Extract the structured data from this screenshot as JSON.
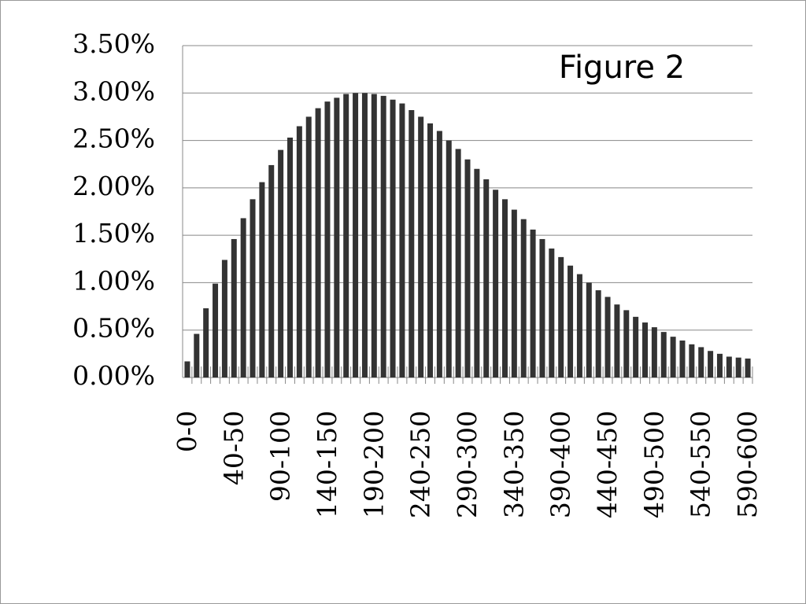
{
  "chart_data": {
    "type": "bar",
    "annotation": "Figure 2",
    "categories": [
      "0-0",
      null,
      null,
      null,
      null,
      "40-50",
      null,
      null,
      null,
      null,
      "90-100",
      null,
      null,
      null,
      null,
      "140-150",
      null,
      null,
      null,
      null,
      "190-200",
      null,
      null,
      null,
      null,
      "240-250",
      null,
      null,
      null,
      null,
      "290-300",
      null,
      null,
      null,
      null,
      "340-350",
      null,
      null,
      null,
      null,
      "390-400",
      null,
      null,
      null,
      null,
      "440-450",
      null,
      null,
      null,
      null,
      "490-500",
      null,
      null,
      null,
      null,
      "540-550",
      null,
      null,
      null,
      null,
      "590-600"
    ],
    "values": [
      0.17,
      0.46,
      0.73,
      0.99,
      1.24,
      1.46,
      1.68,
      1.88,
      2.06,
      2.24,
      2.4,
      2.53,
      2.65,
      2.75,
      2.84,
      2.91,
      2.95,
      2.99,
      3.0,
      3.0,
      2.99,
      2.97,
      2.93,
      2.89,
      2.82,
      2.75,
      2.68,
      2.6,
      2.5,
      2.41,
      2.3,
      2.2,
      2.09,
      1.98,
      1.88,
      1.77,
      1.67,
      1.56,
      1.46,
      1.36,
      1.27,
      1.18,
      1.09,
      1.0,
      0.92,
      0.85,
      0.77,
      0.71,
      0.64,
      0.58,
      0.53,
      0.48,
      0.43,
      0.39,
      0.35,
      0.32,
      0.28,
      0.25,
      0.22,
      0.21,
      0.2
    ],
    "color": "#333333",
    "ylim": [
      0,
      3.5
    ],
    "yticks": [
      {
        "value": 0,
        "label": "0.00%"
      },
      {
        "value": 0.5,
        "label": "0.50%"
      },
      {
        "value": 1,
        "label": "1.00%"
      },
      {
        "value": 1.5,
        "label": "1.50%"
      },
      {
        "value": 2,
        "label": "2.00%"
      },
      {
        "value": 2.5,
        "label": "2.50%"
      },
      {
        "value": 3,
        "label": "3.00%"
      },
      {
        "value": 3.5,
        "label": "3.50%"
      }
    ],
    "grid": true
  }
}
